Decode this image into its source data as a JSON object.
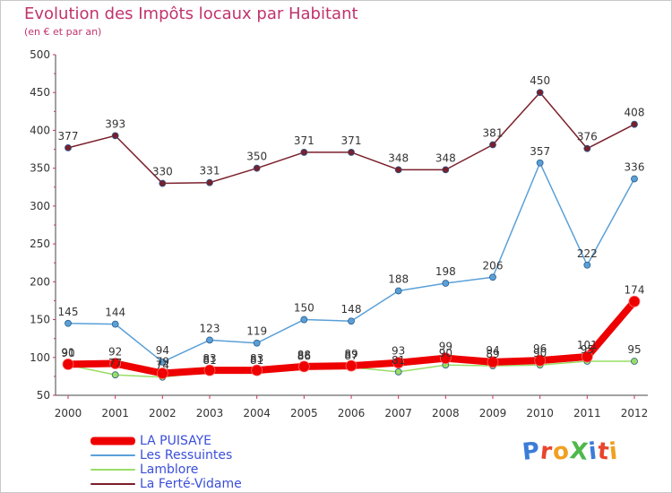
{
  "title": "Evolution des Impôts locaux par Habitant",
  "subtitle": "(en € et par an)",
  "logo": "ProXiti",
  "colors": {
    "title": "#c0336d",
    "axis": "#444444",
    "tick_marks": "#cc3355",
    "legend_text": "#3a4fd8"
  },
  "chart_data": {
    "type": "line",
    "x": [
      "2000",
      "2001",
      "2002",
      "2003",
      "2004",
      "2005",
      "2006",
      "2007",
      "2008",
      "2009",
      "2010",
      "2011",
      "2012"
    ],
    "ylim": [
      50,
      500
    ],
    "yticks": [
      "50",
      "100",
      "150",
      "200",
      "250",
      "300",
      "350",
      "400",
      "450",
      "500"
    ],
    "grid": false,
    "legend_position": "bottom-left",
    "series": [
      {
        "name": "LA PUISAYE",
        "color": "#ee0000",
        "width": 8,
        "values": [
          91,
          92,
          79,
          83,
          83,
          88,
          89,
          93,
          99,
          94,
          96,
          101,
          174
        ],
        "labels": [
          "91",
          "92",
          "79",
          "83",
          "83",
          "88",
          "89",
          "93",
          "99",
          "94",
          "96",
          "101",
          "174"
        ]
      },
      {
        "name": "Les Ressuintes",
        "color": "#5aa0d8",
        "width": 1.5,
        "values": [
          145,
          144,
          94,
          123,
          119,
          150,
          148,
          188,
          198,
          206,
          357,
          222,
          336
        ],
        "labels": [
          "145",
          "144",
          "94",
          "123",
          "119",
          "150",
          "148",
          "188",
          "198",
          "206",
          "357",
          "222",
          "336"
        ]
      },
      {
        "name": "Lamblore",
        "color": "#99dd66",
        "width": 1.5,
        "values": [
          90,
          77,
          74,
          81,
          81,
          86,
          87,
          81,
          90,
          89,
          90,
          95,
          95
        ],
        "labels": [
          "90",
          "77",
          "74",
          "81",
          "81",
          "86",
          "87",
          "81",
          "90",
          "89",
          "90",
          "95",
          "95"
        ]
      },
      {
        "name": "La Ferté-Vidame",
        "color": "#7a1f2b",
        "width": 1.5,
        "values": [
          377,
          393,
          330,
          331,
          350,
          371,
          371,
          348,
          348,
          381,
          450,
          376,
          408
        ],
        "labels": [
          "377",
          "393",
          "330",
          "331",
          "350",
          "371",
          "371",
          "348",
          "348",
          "381",
          "450",
          "376",
          "408"
        ]
      }
    ]
  }
}
